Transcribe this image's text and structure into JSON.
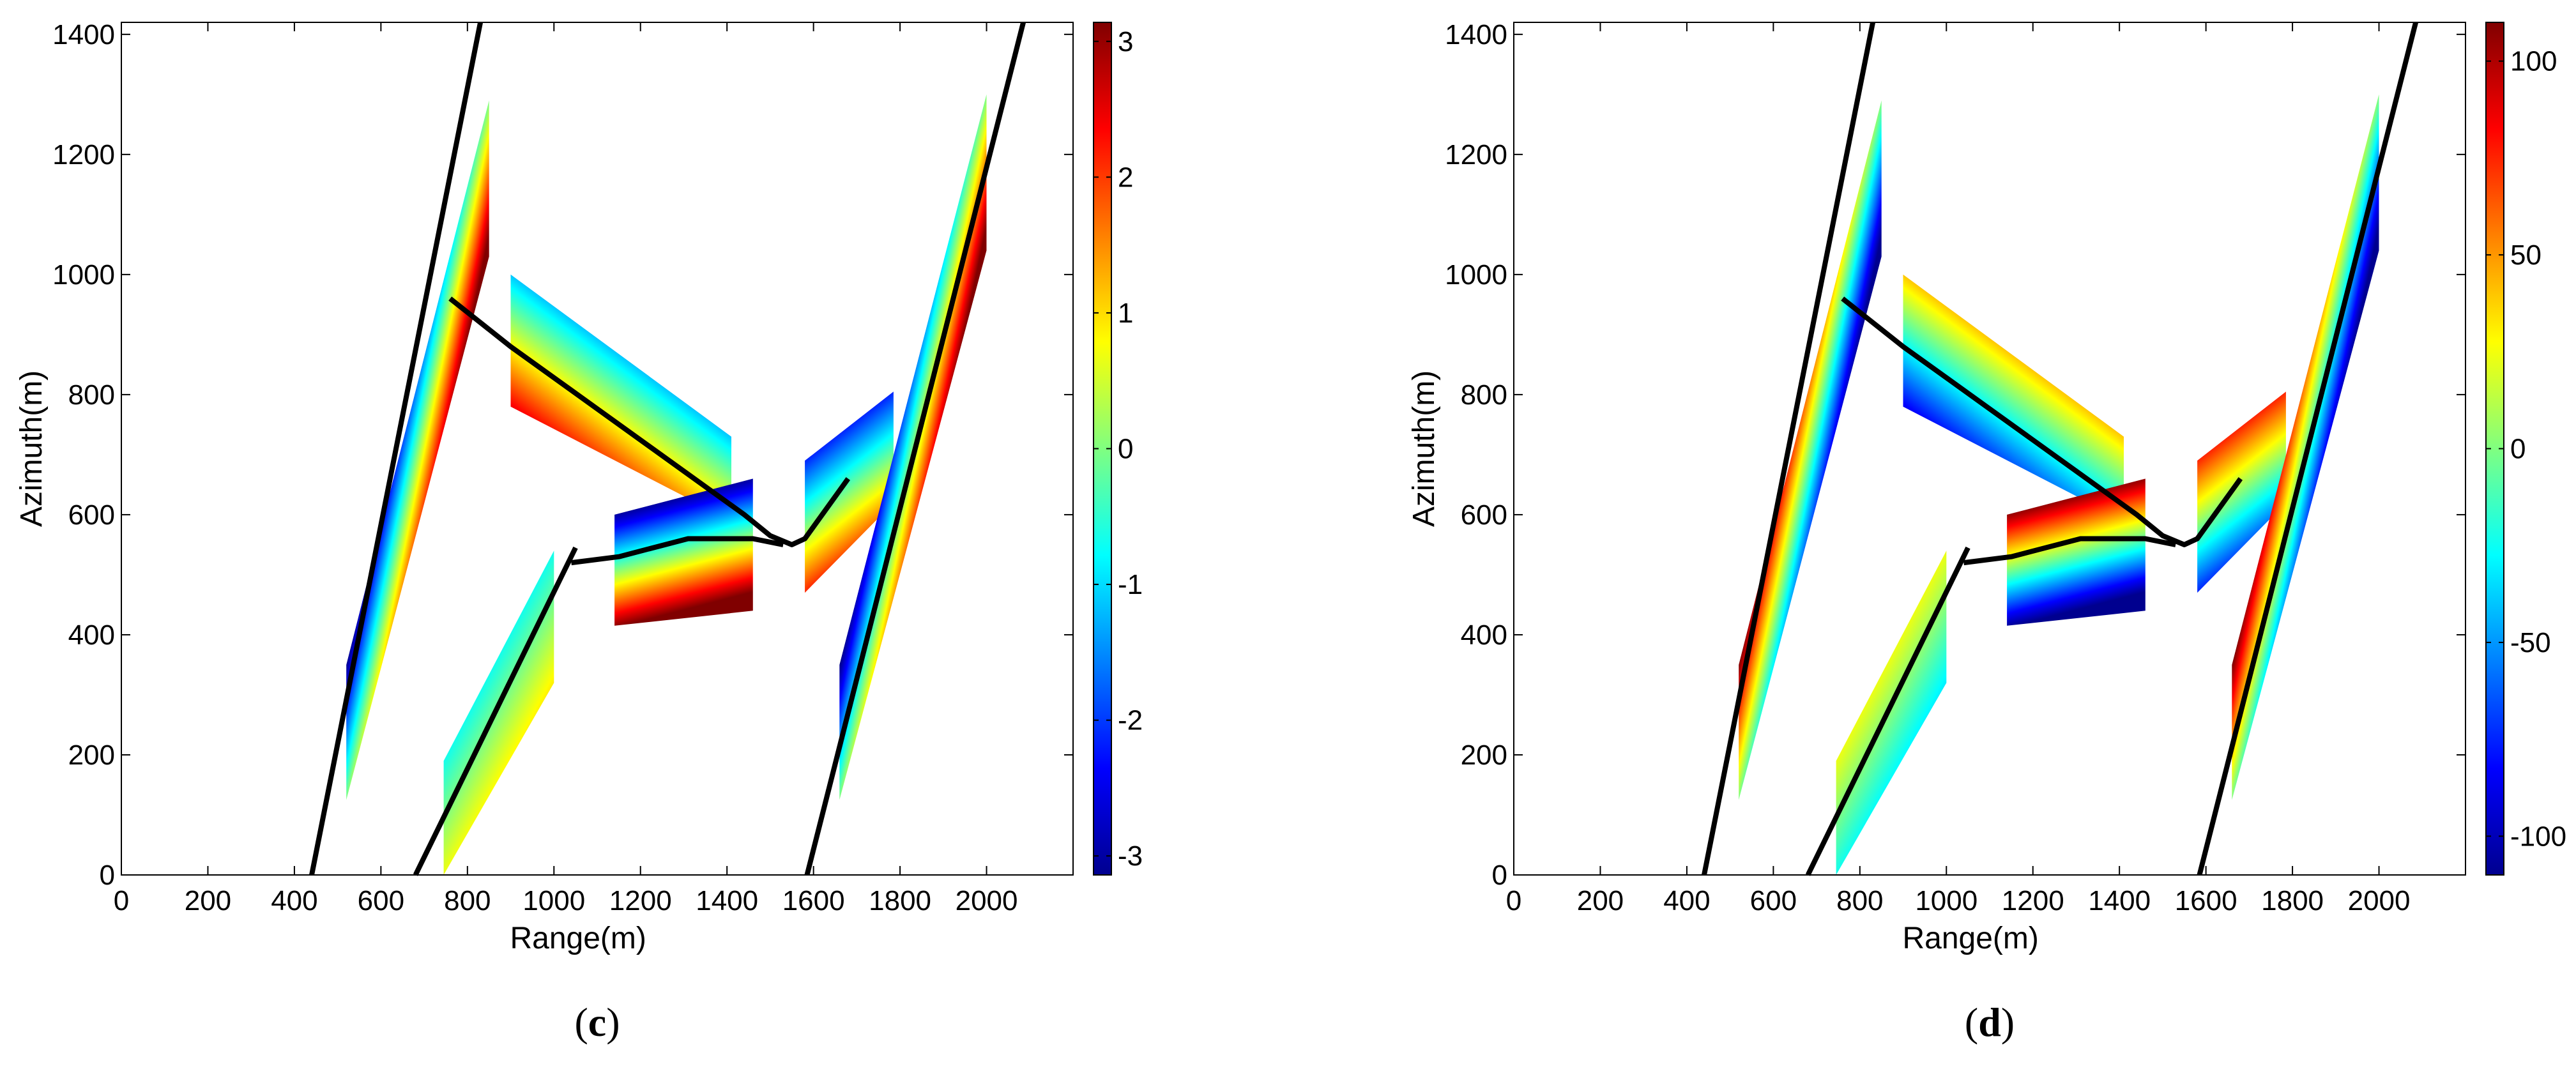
{
  "colormap": [
    "#00008f",
    "#0000ff",
    "#0080ff",
    "#00ffff",
    "#80ff80",
    "#ffff00",
    "#ff8000",
    "#ff0000",
    "#800000"
  ],
  "line_color": "#000000",
  "chart_data": [
    {
      "type": "heatmap",
      "panel": "c",
      "xlabel": "Range(m)",
      "ylabel": "Azimuth(m)",
      "xlim": [
        0,
        2200
      ],
      "ylim": [
        0,
        1420
      ],
      "xticks": [
        0,
        200,
        400,
        600,
        800,
        1000,
        1200,
        1400,
        1600,
        1800,
        2000
      ],
      "yticks": [
        0,
        200,
        400,
        600,
        800,
        1000,
        1200,
        1400
      ],
      "colorbar": {
        "min": -3.14,
        "max": 3.14,
        "ticks": [
          -3,
          -2,
          -1,
          0,
          1,
          2,
          3
        ]
      },
      "invert_gradient": false,
      "lines": [
        [
          [
            440,
            0
          ],
          [
            830,
            1420
          ]
        ],
        [
          [
            680,
            0
          ],
          [
            1050,
            545
          ]
        ],
        [
          [
            1585,
            0
          ],
          [
            2085,
            1420
          ]
        ],
        [
          [
            760,
            960
          ],
          [
            900,
            880
          ],
          [
            1440,
            600
          ],
          [
            1500,
            565
          ],
          [
            1550,
            550
          ],
          [
            1580,
            560
          ],
          [
            1680,
            660
          ]
        ],
        [
          [
            1040,
            520
          ],
          [
            1150,
            530
          ],
          [
            1310,
            560
          ],
          [
            1460,
            560
          ],
          [
            1530,
            550
          ]
        ]
      ],
      "patches": [
        {
          "name": "left-strip",
          "corners": [
            [
              520,
              125
            ],
            [
              520,
              350
            ],
            [
              850,
              1290
            ],
            [
              850,
              1030
            ]
          ],
          "gradient_axis": "range"
        },
        {
          "name": "lower-left-block",
          "corners": [
            [
              745,
              0
            ],
            [
              745,
              190
            ],
            [
              1000,
              540
            ],
            [
              1000,
              320
            ]
          ],
          "gradient_axis": "azimuth"
        },
        {
          "name": "upper-block",
          "corners": [
            [
              900,
              780
            ],
            [
              900,
              1000
            ],
            [
              1410,
              730
            ],
            [
              1410,
              590
            ]
          ],
          "gradient_axis": "azimuth"
        },
        {
          "name": "center-block",
          "corners": [
            [
              1140,
              415
            ],
            [
              1140,
              600
            ],
            [
              1460,
              660
            ],
            [
              1460,
              440
            ]
          ],
          "gradient_axis": "azimuth"
        },
        {
          "name": "right-small-block",
          "corners": [
            [
              1580,
              470
            ],
            [
              1580,
              690
            ],
            [
              1785,
              805
            ],
            [
              1785,
              620
            ]
          ],
          "gradient_axis": "azimuth"
        },
        {
          "name": "right-strip",
          "corners": [
            [
              1660,
              125
            ],
            [
              1660,
              350
            ],
            [
              2000,
              1300
            ],
            [
              2000,
              1040
            ]
          ],
          "gradient_axis": "range"
        }
      ],
      "caption_open": "(",
      "caption_letter": "c",
      "caption_close": ")"
    },
    {
      "type": "heatmap",
      "panel": "d",
      "xlabel": "Range(m)",
      "ylabel": "Azimuth(m)",
      "xlim": [
        0,
        2200
      ],
      "ylim": [
        0,
        1420
      ],
      "xticks": [
        0,
        200,
        400,
        600,
        800,
        1000,
        1200,
        1400,
        1600,
        1800,
        2000
      ],
      "yticks": [
        0,
        200,
        400,
        600,
        800,
        1000,
        1200,
        1400
      ],
      "colorbar": {
        "min": -110,
        "max": 110,
        "ticks": [
          -100,
          -50,
          0,
          50,
          100
        ]
      },
      "invert_gradient": true,
      "lines": [
        [
          [
            440,
            0
          ],
          [
            830,
            1420
          ]
        ],
        [
          [
            680,
            0
          ],
          [
            1050,
            545
          ]
        ],
        [
          [
            1585,
            0
          ],
          [
            2085,
            1420
          ]
        ],
        [
          [
            760,
            960
          ],
          [
            900,
            880
          ],
          [
            1440,
            600
          ],
          [
            1500,
            565
          ],
          [
            1550,
            550
          ],
          [
            1580,
            560
          ],
          [
            1680,
            660
          ]
        ],
        [
          [
            1040,
            520
          ],
          [
            1150,
            530
          ],
          [
            1310,
            560
          ],
          [
            1460,
            560
          ],
          [
            1530,
            550
          ]
        ]
      ],
      "patches": [
        {
          "name": "left-strip",
          "corners": [
            [
              520,
              125
            ],
            [
              520,
              350
            ],
            [
              850,
              1290
            ],
            [
              850,
              1030
            ]
          ],
          "gradient_axis": "range"
        },
        {
          "name": "lower-left-block",
          "corners": [
            [
              745,
              0
            ],
            [
              745,
              190
            ],
            [
              1000,
              540
            ],
            [
              1000,
              320
            ]
          ],
          "gradient_axis": "azimuth"
        },
        {
          "name": "upper-block",
          "corners": [
            [
              900,
              780
            ],
            [
              900,
              1000
            ],
            [
              1410,
              730
            ],
            [
              1410,
              590
            ]
          ],
          "gradient_axis": "azimuth"
        },
        {
          "name": "center-block",
          "corners": [
            [
              1140,
              415
            ],
            [
              1140,
              600
            ],
            [
              1460,
              660
            ],
            [
              1460,
              440
            ]
          ],
          "gradient_axis": "azimuth"
        },
        {
          "name": "right-small-block",
          "corners": [
            [
              1580,
              470
            ],
            [
              1580,
              690
            ],
            [
              1785,
              805
            ],
            [
              1785,
              620
            ]
          ],
          "gradient_axis": "azimuth"
        },
        {
          "name": "right-strip",
          "corners": [
            [
              1660,
              125
            ],
            [
              1660,
              350
            ],
            [
              2000,
              1300
            ],
            [
              2000,
              1040
            ]
          ],
          "gradient_axis": "range"
        }
      ],
      "caption_open": "(",
      "caption_letter": "d",
      "caption_close": ")"
    }
  ]
}
